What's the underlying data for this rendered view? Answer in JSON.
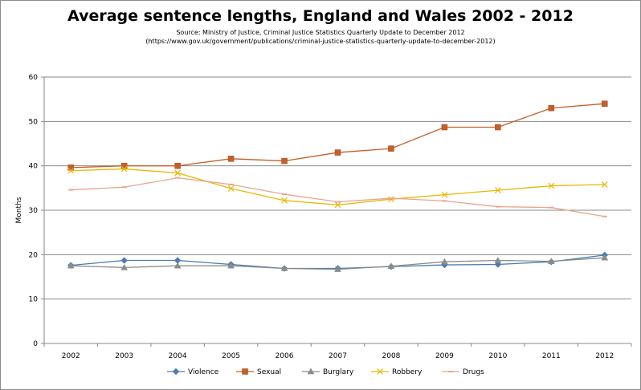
{
  "title": "Average sentence lengths, England and Wales 2002 - 2012",
  "subtitle_lines": [
    "Source: Ministry of Justice, Criminal Justice Statistics Quarterly Update to December 2012",
    "(https://www.gov.uk/government/publications/criminal-justice-statistics-quarterly-update-to-december-2012)"
  ],
  "colors": {
    "Violence": "#4a7eb0",
    "Sexual": "#c65f27",
    "Burglary": "#8c8c8c",
    "Robbery": "#e8b800",
    "Drugs": "#e8a58f",
    "grid": "#888888"
  },
  "chart_data": {
    "type": "line",
    "title": "Average sentence lengths, England and Wales 2002 - 2012",
    "xlabel": "",
    "ylabel": "Months",
    "ylim": [
      0,
      60
    ],
    "yticks": [
      0,
      10,
      20,
      30,
      40,
      50,
      60
    ],
    "grid": true,
    "legend_position": "bottom",
    "categories": [
      "2002",
      "2003",
      "2004",
      "2005",
      "2006",
      "2007",
      "2008",
      "2009",
      "2010",
      "2011",
      "2012"
    ],
    "series": [
      {
        "name": "Violence",
        "marker": "diamond",
        "values": [
          17.6,
          18.7,
          18.7,
          17.8,
          16.9,
          16.9,
          17.3,
          17.7,
          17.8,
          18.4,
          19.9
        ]
      },
      {
        "name": "Sexual",
        "marker": "square",
        "values": [
          39.6,
          40.0,
          40.0,
          41.6,
          41.1,
          43.0,
          43.9,
          48.7,
          48.7,
          53.0,
          54.0
        ]
      },
      {
        "name": "Burglary",
        "marker": "triangle",
        "values": [
          17.5,
          17.1,
          17.5,
          17.5,
          16.9,
          16.7,
          17.4,
          18.4,
          18.7,
          18.5,
          19.3
        ]
      },
      {
        "name": "Robbery",
        "marker": "x",
        "values": [
          38.9,
          39.3,
          38.4,
          34.9,
          32.2,
          31.2,
          32.5,
          33.5,
          34.5,
          35.5,
          35.8
        ]
      },
      {
        "name": "Drugs",
        "marker": "dash",
        "values": [
          34.6,
          35.2,
          37.3,
          35.8,
          33.6,
          31.9,
          32.7,
          32.1,
          30.8,
          30.6,
          28.6
        ]
      }
    ]
  }
}
